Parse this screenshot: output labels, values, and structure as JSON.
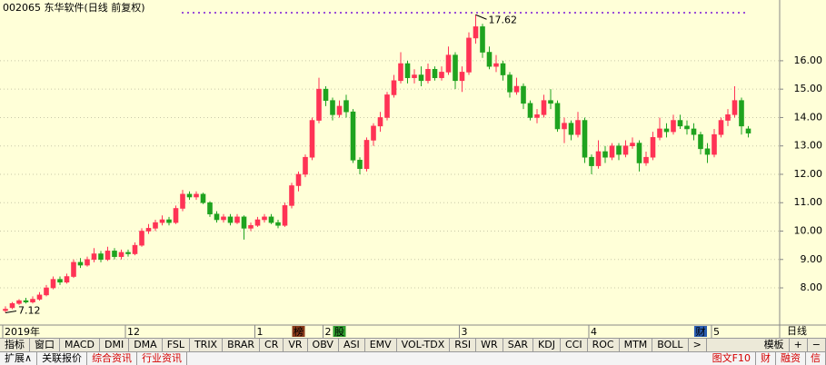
{
  "chart_data": {
    "type": "candlestick",
    "title": "002065 东华软件(日线 前复权)",
    "ohlc": [
      [
        7.2,
        7.35,
        7.12,
        7.25
      ],
      [
        7.3,
        7.5,
        7.25,
        7.45
      ],
      [
        7.45,
        7.6,
        7.4,
        7.55
      ],
      [
        7.55,
        7.65,
        7.45,
        7.5
      ],
      [
        7.5,
        7.7,
        7.45,
        7.6
      ],
      [
        7.6,
        7.85,
        7.55,
        7.75
      ],
      [
        7.75,
        8.1,
        7.7,
        8.0
      ],
      [
        8.0,
        8.4,
        7.95,
        8.3
      ],
      [
        8.3,
        8.4,
        8.1,
        8.2
      ],
      [
        8.2,
        8.5,
        8.15,
        8.4
      ],
      [
        8.4,
        9.0,
        8.35,
        8.9
      ],
      [
        8.9,
        9.05,
        8.7,
        8.8
      ],
      [
        8.8,
        9.1,
        8.75,
        9.0
      ],
      [
        9.0,
        9.4,
        8.9,
        9.2
      ],
      [
        9.2,
        9.3,
        8.9,
        9.0
      ],
      [
        9.0,
        9.45,
        8.95,
        9.3
      ],
      [
        9.3,
        9.4,
        9.0,
        9.1
      ],
      [
        9.1,
        9.35,
        9.0,
        9.25
      ],
      [
        9.25,
        9.35,
        9.1,
        9.2
      ],
      [
        9.2,
        9.6,
        9.15,
        9.5
      ],
      [
        9.5,
        10.1,
        9.45,
        10.0
      ],
      [
        10.0,
        10.25,
        9.9,
        10.1
      ],
      [
        10.1,
        10.4,
        10.0,
        10.3
      ],
      [
        10.3,
        10.55,
        10.2,
        10.4
      ],
      [
        10.4,
        10.5,
        10.2,
        10.3
      ],
      [
        10.3,
        10.9,
        10.25,
        10.8
      ],
      [
        10.8,
        11.45,
        10.7,
        11.3
      ],
      [
        11.3,
        11.4,
        11.1,
        11.2
      ],
      [
        11.2,
        11.4,
        11.1,
        11.3
      ],
      [
        11.3,
        11.35,
        10.95,
        11.0
      ],
      [
        11.0,
        11.05,
        10.5,
        10.6
      ],
      [
        10.6,
        10.7,
        10.3,
        10.4
      ],
      [
        10.4,
        10.6,
        10.3,
        10.5
      ],
      [
        10.5,
        10.6,
        10.2,
        10.3
      ],
      [
        10.3,
        10.6,
        10.25,
        10.5
      ],
      [
        10.5,
        10.55,
        9.7,
        10.1
      ],
      [
        10.1,
        10.3,
        10.0,
        10.2
      ],
      [
        10.2,
        10.5,
        10.15,
        10.4
      ],
      [
        10.4,
        10.6,
        10.3,
        10.5
      ],
      [
        10.5,
        10.6,
        10.25,
        10.3
      ],
      [
        10.3,
        10.4,
        10.1,
        10.2
      ],
      [
        10.2,
        11.0,
        10.15,
        10.9
      ],
      [
        10.9,
        11.7,
        10.8,
        11.6
      ],
      [
        11.6,
        12.1,
        11.4,
        12.0
      ],
      [
        12.0,
        12.7,
        11.9,
        12.6
      ],
      [
        12.6,
        14.0,
        12.5,
        13.9
      ],
      [
        13.9,
        15.4,
        13.8,
        15.0
      ],
      [
        15.0,
        15.1,
        14.4,
        14.6
      ],
      [
        14.6,
        14.7,
        13.9,
        14.1
      ],
      [
        14.1,
        14.6,
        14.0,
        14.4
      ],
      [
        14.6,
        14.8,
        14.0,
        14.2
      ],
      [
        14.2,
        14.3,
        12.4,
        12.5
      ],
      [
        12.5,
        12.6,
        12.0,
        12.2
      ],
      [
        12.2,
        13.3,
        12.1,
        13.2
      ],
      [
        13.2,
        13.8,
        13.0,
        13.7
      ],
      [
        13.7,
        14.2,
        13.5,
        14.0
      ],
      [
        14.0,
        14.9,
        13.9,
        14.8
      ],
      [
        14.8,
        15.5,
        14.7,
        15.3
      ],
      [
        15.3,
        16.3,
        15.2,
        15.9
      ],
      [
        15.9,
        16.0,
        15.2,
        15.4
      ],
      [
        15.4,
        15.7,
        15.2,
        15.5
      ],
      [
        15.5,
        15.8,
        15.1,
        15.3
      ],
      [
        15.3,
        15.9,
        15.2,
        15.7
      ],
      [
        15.7,
        15.8,
        15.3,
        15.4
      ],
      [
        15.4,
        15.8,
        15.3,
        15.6
      ],
      [
        15.6,
        16.5,
        15.5,
        16.2
      ],
      [
        16.2,
        16.3,
        15.0,
        15.3
      ],
      [
        15.3,
        15.8,
        14.9,
        15.6
      ],
      [
        15.6,
        17.0,
        15.5,
        16.8
      ],
      [
        16.8,
        17.62,
        16.6,
        17.2
      ],
      [
        17.2,
        17.3,
        16.1,
        16.3
      ],
      [
        16.3,
        16.5,
        15.7,
        15.8
      ],
      [
        15.8,
        16.2,
        15.6,
        15.9
      ],
      [
        15.9,
        16.0,
        15.3,
        15.5
      ],
      [
        15.5,
        15.6,
        14.7,
        14.9
      ],
      [
        14.9,
        15.4,
        14.8,
        15.1
      ],
      [
        15.1,
        15.2,
        14.3,
        14.5
      ],
      [
        14.5,
        14.6,
        13.9,
        14.0
      ],
      [
        14.0,
        14.3,
        13.8,
        14.1
      ],
      [
        14.1,
        14.8,
        14.0,
        14.6
      ],
      [
        14.6,
        15.0,
        14.3,
        14.5
      ],
      [
        14.5,
        14.6,
        13.5,
        13.6
      ],
      [
        13.6,
        14.0,
        13.1,
        13.8
      ],
      [
        13.8,
        13.9,
        13.2,
        13.4
      ],
      [
        13.4,
        14.2,
        13.3,
        13.9
      ],
      [
        13.9,
        14.0,
        12.4,
        12.6
      ],
      [
        12.6,
        12.7,
        12.0,
        12.3
      ],
      [
        12.3,
        13.2,
        12.2,
        12.8
      ],
      [
        12.8,
        13.0,
        12.4,
        12.6
      ],
      [
        12.6,
        13.1,
        12.5,
        13.0
      ],
      [
        13.0,
        13.1,
        12.5,
        12.7
      ],
      [
        12.7,
        13.2,
        12.6,
        13.0
      ],
      [
        13.0,
        13.3,
        12.9,
        13.1
      ],
      [
        13.1,
        13.2,
        12.1,
        12.4
      ],
      [
        12.4,
        12.8,
        12.3,
        12.6
      ],
      [
        12.6,
        13.5,
        12.5,
        13.3
      ],
      [
        13.3,
        14.0,
        13.2,
        13.6
      ],
      [
        13.6,
        13.8,
        13.3,
        13.5
      ],
      [
        13.5,
        14.1,
        13.4,
        13.9
      ],
      [
        13.9,
        14.1,
        13.6,
        13.7
      ],
      [
        13.7,
        13.9,
        13.4,
        13.6
      ],
      [
        13.6,
        13.8,
        13.2,
        13.4
      ],
      [
        13.4,
        13.5,
        12.7,
        12.9
      ],
      [
        12.9,
        13.1,
        12.4,
        12.7
      ],
      [
        12.7,
        13.6,
        12.6,
        13.4
      ],
      [
        13.4,
        14.0,
        13.3,
        13.9
      ],
      [
        13.9,
        14.3,
        13.7,
        14.1
      ],
      [
        14.1,
        15.1,
        14.0,
        14.6
      ],
      [
        14.6,
        14.7,
        13.4,
        13.7
      ],
      [
        13.6,
        13.7,
        13.3,
        13.45
      ]
    ],
    "up_color": "#ff3355",
    "down_color": "#1fa31f",
    "ylim": [
      6.69,
      18.14
    ],
    "yticks": [
      {
        "value": 8,
        "label": "8.00"
      },
      {
        "value": 9,
        "label": "9.00"
      },
      {
        "value": 10,
        "label": "10.00"
      },
      {
        "value": 11,
        "label": "11.00"
      },
      {
        "value": 12,
        "label": "12.00"
      },
      {
        "value": 13,
        "label": "13.00"
      },
      {
        "value": 14,
        "label": "14.00"
      },
      {
        "value": 15,
        "label": "15.00"
      },
      {
        "value": 16,
        "label": "16.00"
      }
    ],
    "grid": true,
    "annotations": [
      {
        "text": "17.62",
        "index": 69,
        "at": "high"
      },
      {
        "text": "7.12",
        "index": 0,
        "at": "low"
      }
    ],
    "x_labels": [
      {
        "label": "2019年",
        "index": 0
      },
      {
        "label": "12",
        "index": 18
      },
      {
        "label": "1",
        "index": 37
      },
      {
        "label": "2",
        "index": 47
      },
      {
        "label": "3",
        "index": 67
      },
      {
        "label": "4",
        "index": 86
      },
      {
        "label": "5",
        "index": 104
      }
    ],
    "event_markers": [
      {
        "text": "榜",
        "index": 43,
        "color": "#8b3a1a"
      },
      {
        "text": "股",
        "index": 49,
        "color": "#2e9e2e"
      },
      {
        "text": "财",
        "index": 102,
        "color": "#2a5db0"
      }
    ],
    "period_label": "日线"
  },
  "toolbar": {
    "tabs": [
      "指标",
      "窗口",
      "MACD",
      "DMI",
      "DMA",
      "FSL",
      "TRIX",
      "BRAR",
      "CR",
      "VR",
      "OBV",
      "ASI",
      "EMV",
      "VOL-TDX",
      "RSI",
      "WR",
      "SAR",
      "KDJ",
      "CCI",
      "ROC",
      "MTM",
      "BOLL",
      ">"
    ],
    "right": [
      "模板",
      "+",
      "−"
    ]
  },
  "bottom_bar": {
    "left": [
      "扩展∧",
      "关联报价",
      "综合资讯",
      "行业资讯"
    ],
    "right": [
      "图文F10",
      "财",
      "融资",
      "信"
    ]
  }
}
